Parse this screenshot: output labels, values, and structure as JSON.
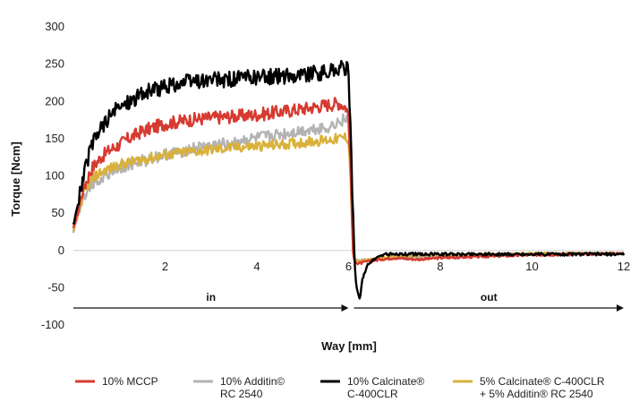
{
  "chart_data": {
    "type": "line",
    "title": "",
    "xlabel": "Way [mm]",
    "ylabel": "Torque [Ncm]",
    "xlim": [
      0,
      12
    ],
    "ylim": [
      -100,
      300
    ],
    "xticks": [
      2,
      4,
      6,
      8,
      10,
      12
    ],
    "yticks": [
      -100,
      -50,
      0,
      50,
      100,
      150,
      200,
      250,
      300
    ],
    "grid": false,
    "legend_position": "bottom",
    "annotations": [
      {
        "text": "in",
        "x_from": 0,
        "x_to": 6
      },
      {
        "text": "out",
        "x_from": 6,
        "x_to": 12
      }
    ],
    "series": [
      {
        "name_lines": [
          "10% MCCP"
        ],
        "color": "#d63a30",
        "x": [
          0,
          0.2,
          0.4,
          0.6,
          0.8,
          1.0,
          1.2,
          1.5,
          2.0,
          2.5,
          3.0,
          3.5,
          4.0,
          4.5,
          5.0,
          5.5,
          5.8,
          5.95,
          6.0,
          6.05,
          6.1,
          6.2,
          6.4,
          6.7,
          7.0,
          7.5,
          8.0,
          9.0,
          10.0,
          11.0,
          12.0
        ],
        "y": [
          28,
          80,
          110,
          125,
          135,
          142,
          150,
          160,
          170,
          175,
          178,
          180,
          182,
          186,
          190,
          195,
          198,
          192,
          180,
          100,
          -10,
          -18,
          -15,
          -12,
          -10,
          -12,
          -10,
          -8,
          -6,
          -5,
          -4
        ],
        "noise": 9
      },
      {
        "name_lines": [
          "10% Additin©",
          "RC 2540"
        ],
        "color": "#b3b3b3",
        "x": [
          0,
          0.2,
          0.4,
          0.6,
          0.8,
          1.0,
          1.5,
          2.0,
          2.5,
          3.0,
          3.5,
          4.0,
          4.5,
          5.0,
          5.5,
          5.8,
          5.95,
          6.0,
          6.05,
          6.1,
          6.2,
          6.5,
          7.0,
          8.0,
          9.0,
          10.0,
          11.0,
          12.0
        ],
        "y": [
          25,
          70,
          90,
          98,
          104,
          110,
          120,
          128,
          135,
          140,
          145,
          150,
          155,
          160,
          165,
          172,
          178,
          170,
          100,
          -8,
          -14,
          -12,
          -10,
          -8,
          -7,
          -6,
          -5,
          -4
        ],
        "noise": 8
      },
      {
        "name_lines": [
          "10% Calcinate®",
          "C-400CLR"
        ],
        "color": "#000000",
        "x": [
          0,
          0.2,
          0.4,
          0.6,
          0.8,
          1.0,
          1.2,
          1.5,
          2.0,
          2.5,
          3.0,
          3.5,
          4.0,
          4.5,
          5.0,
          5.5,
          5.7,
          5.9,
          6.0,
          6.05,
          6.1,
          6.15,
          6.2,
          6.25,
          6.3,
          6.4,
          6.6,
          6.8,
          7.0,
          8.0,
          9.0,
          10.0,
          11.0,
          12.0
        ],
        "y": [
          35,
          95,
          140,
          165,
          180,
          192,
          200,
          210,
          220,
          226,
          228,
          230,
          232,
          234,
          236,
          238,
          242,
          245,
          240,
          150,
          40,
          -40,
          -55,
          -65,
          -40,
          -20,
          -10,
          -5,
          -5,
          -5,
          -5,
          -5,
          -5,
          -5
        ],
        "noise": 11
      },
      {
        "name_lines": [
          "5% Calcinate® C-400CLR",
          "+ 5% Additin® RC 2540"
        ],
        "color": "#d9b13a",
        "x": [
          0,
          0.2,
          0.4,
          0.6,
          0.8,
          1.0,
          1.5,
          2.0,
          2.5,
          3.0,
          3.5,
          4.0,
          4.5,
          5.0,
          5.5,
          5.8,
          5.95,
          6.0,
          6.05,
          6.1,
          6.2,
          6.5,
          7.0,
          8.0,
          9.0,
          10.0,
          11.0,
          12.0
        ],
        "y": [
          25,
          72,
          95,
          105,
          110,
          115,
          122,
          128,
          132,
          135,
          138,
          140,
          142,
          145,
          148,
          150,
          152,
          148,
          90,
          -10,
          -15,
          -12,
          -8,
          -6,
          -5,
          -4,
          -4,
          -4
        ],
        "noise": 7
      }
    ]
  }
}
